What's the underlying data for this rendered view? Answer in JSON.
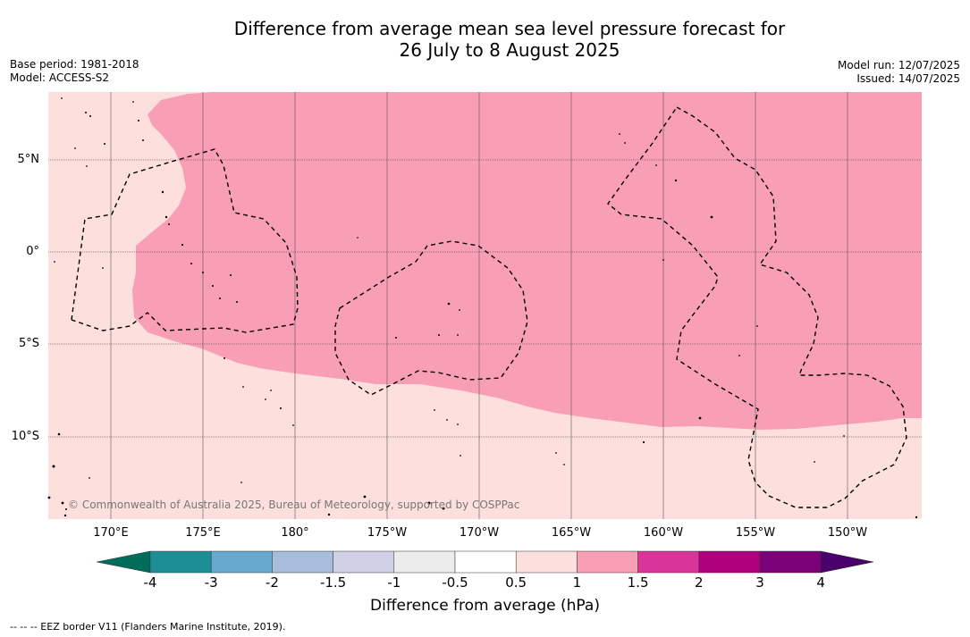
{
  "header": {
    "title_line1": "Difference from average mean sea level pressure forecast for",
    "title_line2": "26 July to 8 August 2025",
    "base_period": "Base period: 1981-2018",
    "model": "Model: ACCESS-S2",
    "model_run": "Model run: 12/07/2025",
    "issued": "Issued: 14/07/2025"
  },
  "map": {
    "latitude_labels": [
      "5°N",
      "0°",
      "5°S",
      "10°S"
    ],
    "longitude_labels": [
      "170°E",
      "175°E",
      "180°",
      "175°W",
      "170°W",
      "165°W",
      "160°W",
      "155°W",
      "150°W"
    ],
    "copyright": "© Commonwealth of Australia 2025, Bureau of Meteorology, supported by COSPPac",
    "colors": {
      "anomaly_0_5_to_1": "#fde0de",
      "anomaly_1_to_1_5": "#f99fb5",
      "gridline": "#555555",
      "eez_border": "#000000"
    }
  },
  "colorbar": {
    "tick_labels": [
      "-4",
      "-3",
      "-2",
      "-1.5",
      "-1",
      "-0.5",
      "0.5",
      "1",
      "1.5",
      "2",
      "3",
      "4"
    ],
    "colors": [
      "#1e8e96",
      "#67a9cf",
      "#a6bddb",
      "#d0d1e6",
      "#ececec",
      "#ffffff",
      "#fde0de",
      "#f99fb5",
      "#d9349a",
      "#ad017e",
      "#7a0177"
    ],
    "under_color": "#016c59",
    "over_color": "#49006a",
    "label": "Difference from average (hPa)"
  },
  "legend": {
    "text": "-- -- -- EEZ border V11 (Flanders Marine Institute, 2019)."
  }
}
